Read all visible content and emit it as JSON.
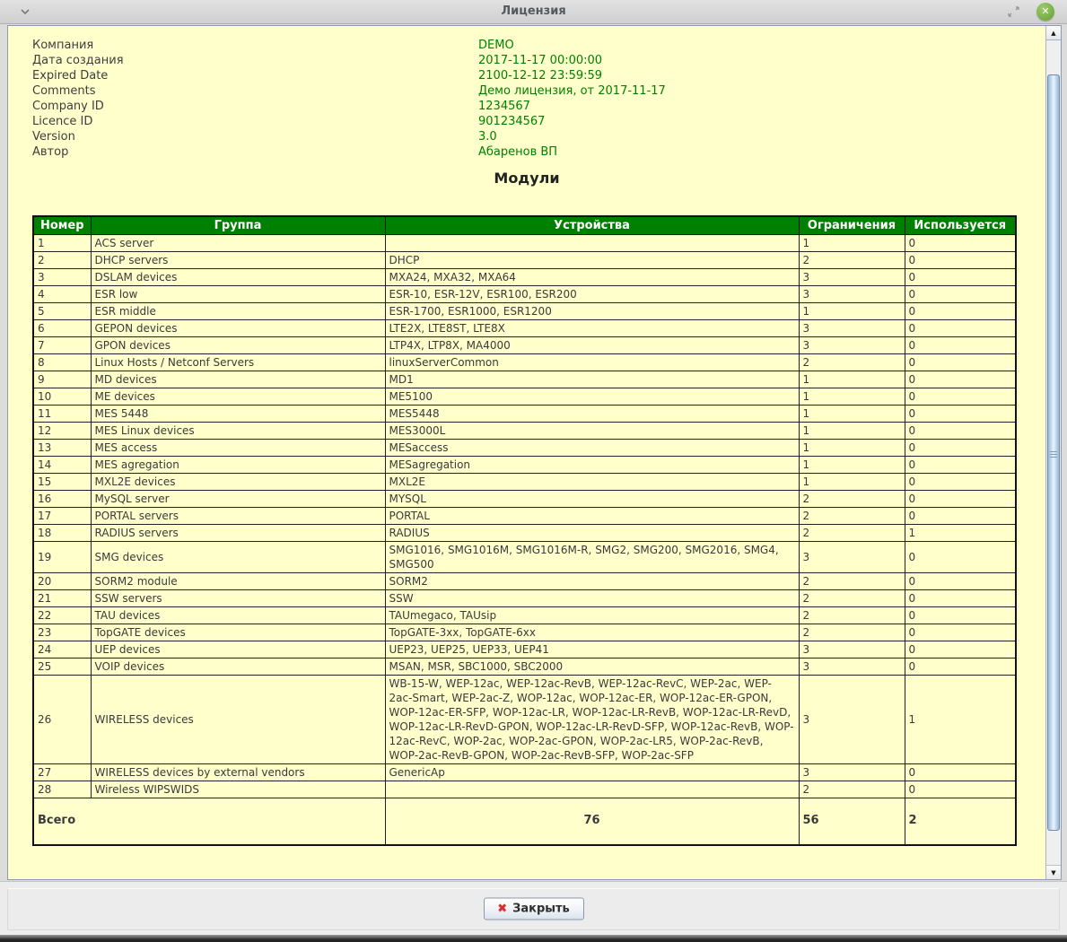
{
  "window": {
    "title": "Лицензия"
  },
  "colors": {
    "page_bg": "#ffffcc",
    "table_header_bg": "#008000",
    "value_text": "#008000",
    "close_circle": "#74ad43",
    "button_x": "#d32f2f"
  },
  "icons": {
    "window_menu": "chevron-down",
    "restore": "diagonal-arrows",
    "close_window": "✕",
    "scroll_up": "▲",
    "scroll_down": "▼",
    "close_button_x": "✖"
  },
  "info": {
    "fields": [
      {
        "label": "Компания",
        "value": "DEMO"
      },
      {
        "label": "Дата создания",
        "value": "2017-11-17 00:00:00"
      },
      {
        "label": "Expired Date",
        "value": "2100-12-12 23:59:59"
      },
      {
        "label": "Comments",
        "value": "Демо лицензия, от 2017-11-17"
      },
      {
        "label": "Company ID",
        "value": "1234567"
      },
      {
        "label": "Licence ID",
        "value": "901234567"
      },
      {
        "label": "Version",
        "value": "3.0"
      },
      {
        "label": "Автор",
        "value": "Абаренов ВП"
      }
    ]
  },
  "modules": {
    "title": "Модули",
    "columns": [
      "Номер",
      "Группа",
      "Устройства",
      "Ограничения",
      "Используется"
    ],
    "rows": [
      {
        "num": "1",
        "group": "ACS server",
        "devices": "",
        "limit": "1",
        "used": "0"
      },
      {
        "num": "2",
        "group": "DHCP servers",
        "devices": "DHCP",
        "limit": "2",
        "used": "0"
      },
      {
        "num": "3",
        "group": "DSLAM devices",
        "devices": "MXA24, MXA32, MXA64",
        "limit": "3",
        "used": "0"
      },
      {
        "num": "4",
        "group": "ESR low",
        "devices": "ESR-10, ESR-12V, ESR100, ESR200",
        "limit": "3",
        "used": "0"
      },
      {
        "num": "5",
        "group": "ESR middle",
        "devices": "ESR-1700, ESR1000, ESR1200",
        "limit": "1",
        "used": "0"
      },
      {
        "num": "6",
        "group": "GEPON devices",
        "devices": "LTE2X, LTE8ST, LTE8X",
        "limit": "3",
        "used": "0"
      },
      {
        "num": "7",
        "group": "GPON devices",
        "devices": "LTP4X, LTP8X, MA4000",
        "limit": "3",
        "used": "0"
      },
      {
        "num": "8",
        "group": "Linux Hosts / Netconf Servers",
        "devices": "linuxServerCommon",
        "limit": "2",
        "used": "0"
      },
      {
        "num": "9",
        "group": "MD devices",
        "devices": "MD1",
        "limit": "1",
        "used": "0"
      },
      {
        "num": "10",
        "group": "ME devices",
        "devices": "ME5100",
        "limit": "1",
        "used": "0"
      },
      {
        "num": "11",
        "group": "MES 5448",
        "devices": "MES5448",
        "limit": "1",
        "used": "0"
      },
      {
        "num": "12",
        "group": "MES Linux devices",
        "devices": "MES3000L",
        "limit": "1",
        "used": "0"
      },
      {
        "num": "13",
        "group": "MES access",
        "devices": "MESaccess",
        "limit": "1",
        "used": "0"
      },
      {
        "num": "14",
        "group": "MES agregation",
        "devices": "MESagregation",
        "limit": "1",
        "used": "0"
      },
      {
        "num": "15",
        "group": "MXL2E devices",
        "devices": "MXL2E",
        "limit": "1",
        "used": "0"
      },
      {
        "num": "16",
        "group": "MySQL server",
        "devices": "MYSQL",
        "limit": "2",
        "used": "0"
      },
      {
        "num": "17",
        "group": "PORTAL servers",
        "devices": "PORTAL",
        "limit": "2",
        "used": "0"
      },
      {
        "num": "18",
        "group": "RADIUS servers",
        "devices": "RADIUS",
        "limit": "2",
        "used": "1"
      },
      {
        "num": "19",
        "group": "SMG devices",
        "devices": "SMG1016, SMG1016M, SMG1016M-R, SMG2, SMG200, SMG2016, SMG4, SMG500",
        "limit": "3",
        "used": "0"
      },
      {
        "num": "20",
        "group": "SORM2 module",
        "devices": "SORM2",
        "limit": "2",
        "used": "0"
      },
      {
        "num": "21",
        "group": "SSW servers",
        "devices": "SSW",
        "limit": "2",
        "used": "0"
      },
      {
        "num": "22",
        "group": "TAU devices",
        "devices": "TAUmegaco, TAUsip",
        "limit": "2",
        "used": "0"
      },
      {
        "num": "23",
        "group": "TopGATE devices",
        "devices": "TopGATE-3xx, TopGATE-6xx",
        "limit": "2",
        "used": "0"
      },
      {
        "num": "24",
        "group": "UEP devices",
        "devices": "UEP23, UEP25, UEP33, UEP41",
        "limit": "3",
        "used": "0"
      },
      {
        "num": "25",
        "group": "VOIP devices",
        "devices": "MSAN, MSR, SBC1000, SBC2000",
        "limit": "3",
        "used": "0"
      },
      {
        "num": "26",
        "group": "WIRELESS devices",
        "devices": "WB-15-W, WEP-12ac, WEP-12ac-RevB, WEP-12ac-RevC, WEP-2ac, WEP-2ac-Smart, WEP-2ac-Z, WOP-12ac, WOP-12ac-ER, WOP-12ac-ER-GPON, WOP-12ac-ER-SFP, WOP-12ac-LR, WOP-12ac-LR-RevB, WOP-12ac-LR-RevD, WOP-12ac-LR-RevD-GPON, WOP-12ac-LR-RevD-SFP, WOP-12ac-RevB, WOP-12ac-RevC, WOP-2ac, WOP-2ac-GPON, WOP-2ac-LR5, WOP-2ac-RevB, WOP-2ac-RevB-GPON, WOP-2ac-RevB-SFP, WOP-2ac-SFP",
        "limit": "3",
        "used": "1"
      },
      {
        "num": "27",
        "group": "WIRELESS devices by external vendors",
        "devices": "GenericAp",
        "limit": "3",
        "used": "0"
      },
      {
        "num": "28",
        "group": "Wireless WIPSWIDS",
        "devices": "",
        "limit": "2",
        "used": "0"
      }
    ],
    "total": {
      "label": "Всего",
      "devices": "76",
      "limit": "56",
      "used": "2"
    }
  },
  "footer": {
    "close_label": "Закрыть"
  }
}
